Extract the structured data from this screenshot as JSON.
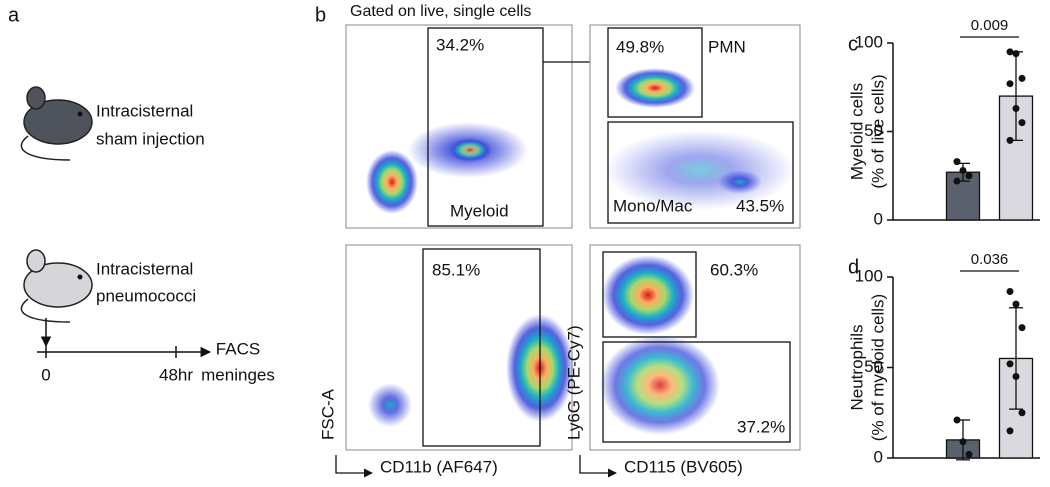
{
  "panel_a": {
    "label": "a",
    "group1": [
      "Intracisternal",
      "sham injection"
    ],
    "group2": [
      "Intracisternal",
      "pneumococci"
    ],
    "timeline": {
      "start": "0",
      "end": "48hr",
      "readout": [
        "FACS",
        "meninges"
      ]
    }
  },
  "panel_b": {
    "label": "b",
    "title": "Gated on live, single cells",
    "plots": [
      {
        "gates": [
          "34.2%",
          "Myeloid"
        ]
      },
      {
        "gates": [
          "49.8%",
          "PMN",
          "Mono/Mac",
          "43.5%"
        ]
      },
      {
        "gates": [
          "85.1%"
        ],
        "xlabel": "CD11b (AF647)",
        "ylabel": "FSC-A"
      },
      {
        "gates": [
          "60.3%",
          "37.2%"
        ],
        "xlabel": "CD115 (BV605)",
        "ylabel": "Ly6G (PE-Cy7)"
      }
    ]
  },
  "chart_data": [
    {
      "type": "bar",
      "label": "c",
      "categories": [
        null,
        null
      ],
      "values": [
        27,
        70
      ],
      "errors": [
        5,
        25
      ],
      "points": [
        [
          33,
          28,
          25,
          22
        ],
        [
          95,
          94,
          80,
          77,
          63,
          55,
          45
        ]
      ],
      "colors": [
        "#5b606e",
        "#d9d9df"
      ],
      "ylabel": [
        "Myeloid cells",
        "(% of live cells)"
      ],
      "ylim": [
        0,
        100
      ],
      "yticks": [
        0,
        50,
        100
      ],
      "annotation": "0.009"
    },
    {
      "type": "bar",
      "label": "d",
      "categories": [
        null,
        null
      ],
      "values": [
        10,
        55
      ],
      "errors": [
        11,
        28
      ],
      "points": [
        [
          21,
          9,
          2
        ],
        [
          92,
          85,
          72,
          52,
          45,
          25,
          15
        ]
      ],
      "colors": [
        "#5b606e",
        "#d9d9df"
      ],
      "ylabel": [
        "Neutrophils",
        "(% of myeloid cells)"
      ],
      "ylim": [
        0,
        100
      ],
      "yticks": [
        0,
        50,
        100
      ],
      "annotation": "0.036"
    }
  ]
}
